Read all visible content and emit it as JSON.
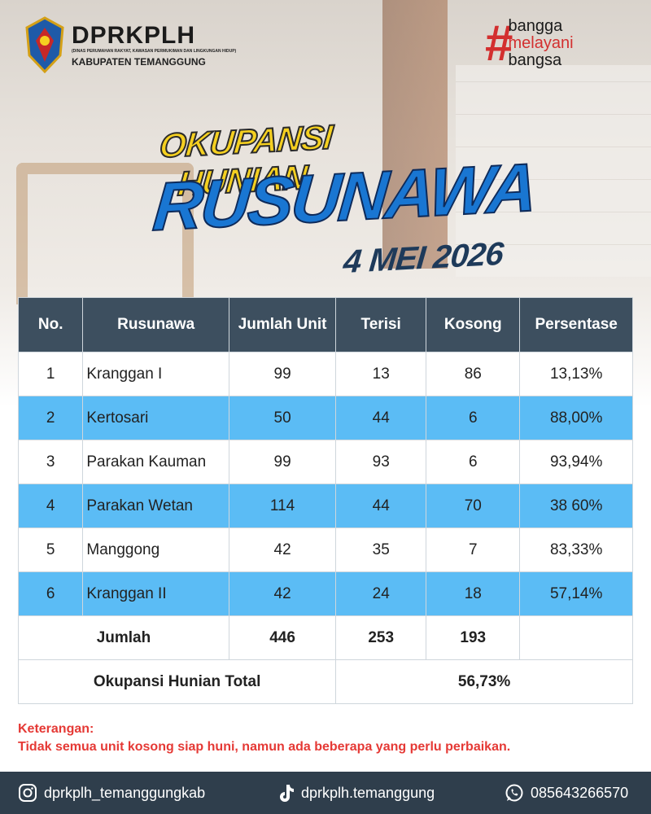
{
  "header": {
    "org": "DPRKPLH",
    "org_full": "(DINAS PERUMAHAN RAKYAT, KAWASAN PERMUKIMAN DAN LINGKUNGAN HIDUP)",
    "region": "KABUPATEN TEMANGGUNG",
    "tagline": {
      "hash": "#",
      "words": [
        "bangga",
        "melayani",
        "bangsa"
      ]
    }
  },
  "title": {
    "line1": "OKUPANSI HUNIAN",
    "line2": "RUSUNAWA",
    "date": "4 MEI 2026"
  },
  "table": {
    "columns": [
      "No.",
      "Rusunawa",
      "Jumlah Unit",
      "Terisi",
      "Kosong",
      "Persentase"
    ],
    "rows": [
      [
        "1",
        "Kranggan I",
        "99",
        "13",
        "86",
        "13,13%"
      ],
      [
        "2",
        "Kertosari",
        "50",
        "44",
        "6",
        "88,00%"
      ],
      [
        "3",
        "Parakan Kauman",
        "99",
        "93",
        "6",
        "93,94%"
      ],
      [
        "4",
        "Parakan Wetan",
        "114",
        "44",
        "70",
        "38 60%"
      ],
      [
        "5",
        "Manggong",
        "42",
        "35",
        "7",
        "83,33%"
      ],
      [
        "6",
        "Kranggan II",
        "42",
        "24",
        "18",
        "57,14%"
      ]
    ],
    "total": {
      "label": "Jumlah",
      "values": [
        "446",
        "253",
        "193"
      ]
    },
    "occupancy": {
      "label": "Okupansi Hunian Total",
      "value": "56,73%"
    }
  },
  "note": {
    "label": "Keterangan:",
    "text": "Tidak semua unit kosong siap huni, namun ada beberapa yang perlu perbaikan."
  },
  "footer": {
    "instagram": "dprkplh_temanggungkab",
    "tiktok": "dprkplh.temanggung",
    "whatsapp": "085643266570"
  }
}
